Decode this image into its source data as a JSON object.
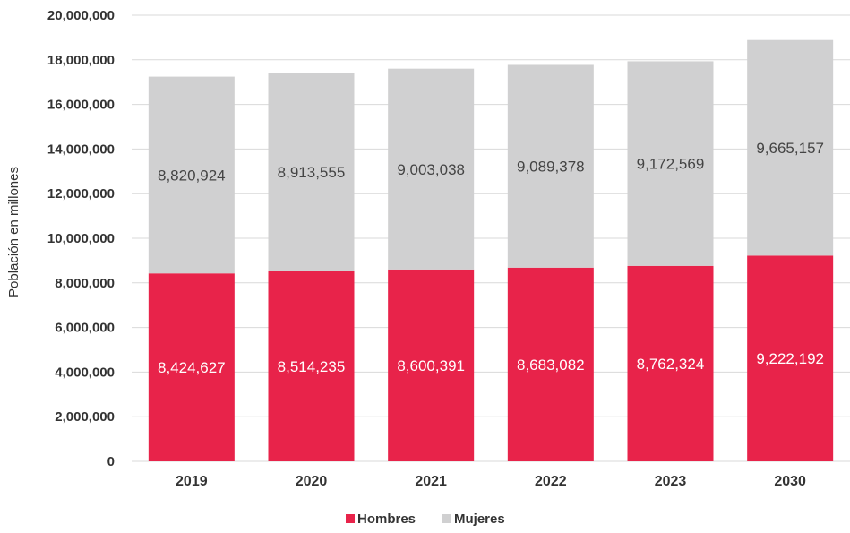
{
  "colors": {
    "hombres": "#e8234a",
    "mujeres": "#d0d0d1",
    "hombres_label": "#ffffff",
    "mujeres_label": "#444444",
    "grid": "#d9d9d9"
  },
  "chart_data": {
    "type": "bar",
    "stacked": true,
    "title": "",
    "xlabel": "",
    "ylabel": "Población en millones",
    "categories": [
      "2019",
      "2020",
      "2021",
      "2022",
      "2023",
      "2030"
    ],
    "series": [
      {
        "name": "Hombres",
        "values": [
          8424627,
          8514235,
          8600391,
          8683082,
          8762324,
          9222192
        ]
      },
      {
        "name": "Mujeres",
        "values": [
          8820924,
          8913555,
          9003038,
          9089378,
          9172569,
          9665157
        ]
      }
    ],
    "ylim": [
      0,
      20000000
    ],
    "yticks": [
      0,
      2000000,
      4000000,
      6000000,
      8000000,
      10000000,
      12000000,
      14000000,
      16000000,
      18000000,
      20000000
    ],
    "ytick_labels": [
      "0",
      "2,000,000",
      "4,000,000",
      "6,000,000",
      "8,000,000",
      "10,000,000",
      "12,000,000",
      "14,000,000",
      "16,000,000",
      "18,000,000",
      "20,000,000"
    ],
    "data_labels": [
      [
        "8,424,627",
        "8,514,235",
        "8,600,391",
        "8,683,082",
        "8,762,324",
        "9,222,192"
      ],
      [
        "8,820,924",
        "8,913,555",
        "9,003,038",
        "9,089,378",
        "9,172,569",
        "9,665,157"
      ]
    ],
    "grid": true,
    "legend_position": "bottom"
  }
}
